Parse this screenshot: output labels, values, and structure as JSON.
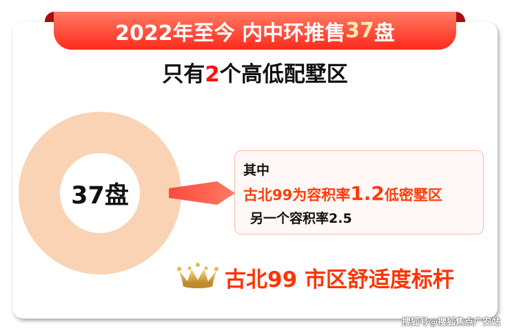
{
  "header": {
    "title_prefix": "2022年至今 内中环推售",
    "title_highlight": "37",
    "title_suffix": "盘"
  },
  "subtitle": {
    "prefix": "只有",
    "highlight": "2",
    "suffix": "个高低配墅区"
  },
  "donut": {
    "center_label": "37盘",
    "colors": {
      "ring": "#fad3b4",
      "pointer": "#ff5a4a"
    }
  },
  "callout": {
    "line1": "其中",
    "line2_prefix": "古北99为容积率",
    "line2_big": "1.2",
    "line2_suffix": "低密墅区",
    "line3": "另一个容积率2.5"
  },
  "slogan": {
    "icon": "crown-icon",
    "text": "古北99 市区舒适度标杆"
  },
  "watermark": "搜狐号@搜狐焦点广安站",
  "colors": {
    "ribbon": "#ff3a28",
    "accent": "#ff3300"
  }
}
